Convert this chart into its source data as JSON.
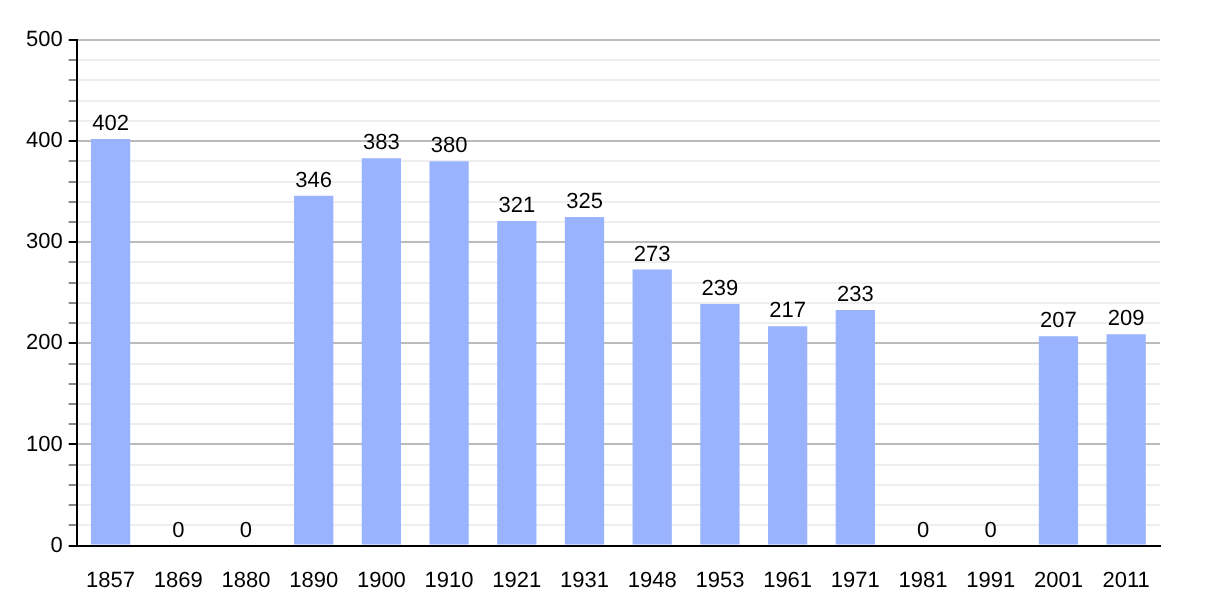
{
  "chart_data": {
    "type": "bar",
    "categories": [
      "1857",
      "1869",
      "1880",
      "1890",
      "1900",
      "1910",
      "1921",
      "1931",
      "1948",
      "1953",
      "1961",
      "1971",
      "1981",
      "1991",
      "2001",
      "2011"
    ],
    "values": [
      402,
      0,
      0,
      346,
      383,
      380,
      321,
      325,
      273,
      239,
      217,
      233,
      0,
      0,
      207,
      209
    ],
    "color": "#99b3ff",
    "ylim": [
      0,
      500
    ],
    "yticks": [
      0,
      {
        "value": 20,
        "label": null
      },
      {
        "value": 40,
        "label": null
      },
      {
        "value": 60,
        "label": null
      },
      {
        "value": 80,
        "label": null
      },
      100,
      {
        "value": 120,
        "label": null
      },
      {
        "value": 140,
        "label": null
      },
      {
        "value": 160,
        "label": null
      },
      {
        "value": 180,
        "label": null
      },
      200,
      {
        "value": 220,
        "label": null
      },
      {
        "value": 240,
        "label": null
      },
      {
        "value": 260,
        "label": null
      },
      {
        "value": 280,
        "label": null
      },
      300,
      {
        "value": 320,
        "label": null
      },
      {
        "value": 340,
        "label": null
      },
      {
        "value": 360,
        "label": null
      },
      {
        "value": 380,
        "label": null
      },
      400,
      {
        "value": 420,
        "label": null
      },
      {
        "value": 440,
        "label": null
      },
      {
        "value": 460,
        "label": null
      },
      {
        "value": 480,
        "label": null
      },
      500
    ],
    "grid": "y",
    "data_labels": true
  }
}
